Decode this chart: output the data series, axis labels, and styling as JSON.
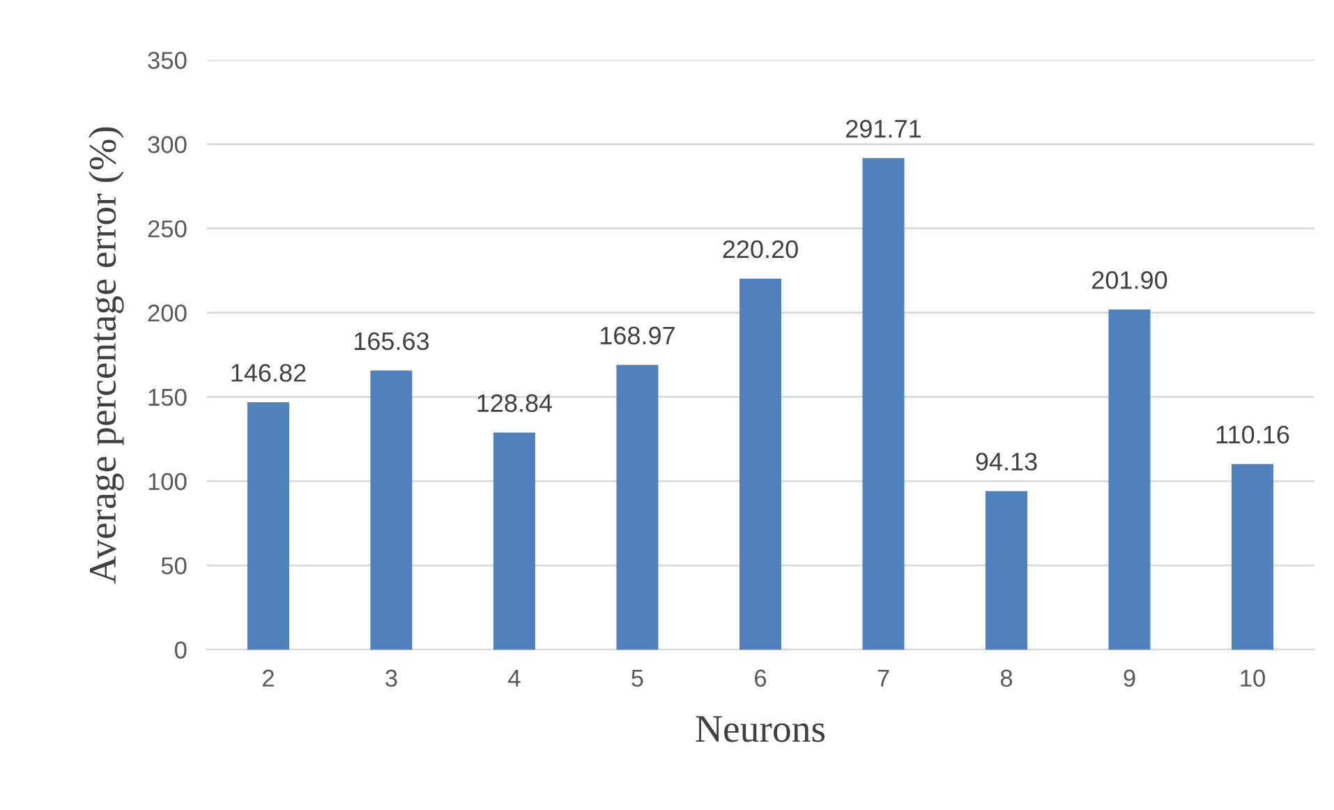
{
  "chart_data": {
    "type": "bar",
    "xlabel": "Neurons",
    "ylabel": "Average percentage error (%)",
    "categories": [
      "2",
      "3",
      "4",
      "5",
      "6",
      "7",
      "8",
      "9",
      "10"
    ],
    "values": [
      146.82,
      165.63,
      128.84,
      168.97,
      220.2,
      291.71,
      94.13,
      201.9,
      110.16
    ],
    "value_labels": [
      "146.82",
      "165.63",
      "128.84",
      "168.97",
      "220.20",
      "291.71",
      "94.13",
      "201.90",
      "110.16"
    ],
    "color": "#4f81bd",
    "ylim": [
      0,
      350
    ],
    "yticks": [
      0,
      50,
      100,
      150,
      200,
      250,
      300,
      350
    ],
    "grid": "y",
    "legend": false
  }
}
